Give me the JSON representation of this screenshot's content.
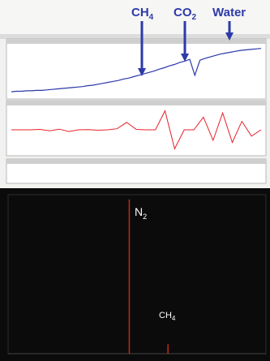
{
  "chart_data": [
    {
      "type": "line",
      "panel": "top-blue",
      "annotations": [
        {
          "label_parts": [
            "CH",
            "4"
          ],
          "x": 0.585
        },
        {
          "label_parts": [
            "CO",
            "2"
          ],
          "x": 0.71
        },
        {
          "label_parts": [
            "Water"
          ],
          "x": 0.86
        }
      ],
      "series": [
        {
          "color": "#2b38a8",
          "values": [
            0.05,
            0.06,
            0.06,
            0.07,
            0.07,
            0.08,
            0.08,
            0.09,
            0.1,
            0.11,
            0.12,
            0.13,
            0.14,
            0.15,
            0.16,
            0.18,
            0.19,
            0.21,
            0.23,
            0.25,
            0.27,
            0.29,
            0.32,
            0.34,
            0.37,
            0.4,
            0.43,
            0.46,
            0.49,
            0.53,
            0.56,
            0.6,
            0.63,
            0.67,
            0.7,
            0.74,
            0.4,
            0.72,
            0.76,
            0.79,
            0.82,
            0.85,
            0.87,
            0.89,
            0.91,
            0.93,
            0.94,
            0.95,
            0.96,
            0.97
          ]
        }
      ]
    },
    {
      "type": "line",
      "panel": "top-red",
      "series": [
        {
          "color": "#e8202a",
          "values": [
            0.0,
            0.0,
            0.0,
            0.02,
            -0.05,
            0.03,
            -0.08,
            0.0,
            0.01,
            -0.02,
            0.0,
            0.05,
            0.35,
            0.02,
            0.0,
            0.0,
            0.9,
            -0.9,
            0.0,
            0.0,
            0.6,
            -0.5,
            0.8,
            -0.6,
            0.4,
            -0.3,
            0.0
          ]
        }
      ]
    },
    {
      "type": "line",
      "panel": "bottom",
      "annotations": [
        {
          "label_parts": [
            "N",
            "2"
          ],
          "x": 0.47
        },
        {
          "label_parts": [
            "CH",
            "4"
          ],
          "x": 0.62
        }
      ],
      "series": [
        {
          "color": "#c02a1a",
          "peaks": [
            {
              "x": 0.47,
              "height": 0.98
            },
            {
              "x": 0.62,
              "height": 0.06
            }
          ]
        }
      ]
    }
  ]
}
